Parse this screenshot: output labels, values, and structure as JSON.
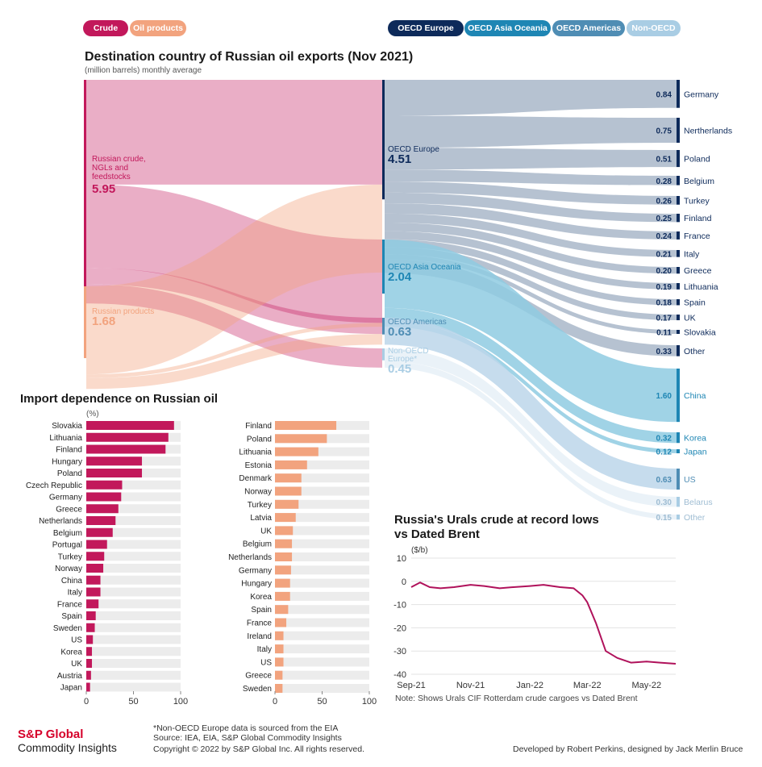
{
  "legend": {
    "crude": {
      "label": "Crude",
      "color": "#c2185b"
    },
    "products": {
      "label": "Oil products",
      "color": "#f2a37e"
    },
    "regions": [
      {
        "label": "OECD Europe",
        "color": "#0d2a5a"
      },
      {
        "label": "OECD Asia Oceania",
        "color": "#1e86b4"
      },
      {
        "label": "OECD Americas",
        "color": "#4f8db4"
      },
      {
        "label": "Non-OECD",
        "color": "#a9cde4"
      }
    ]
  },
  "sankey": {
    "title": "Destination country of Russian oil exports (Nov 2021)",
    "subtitle": "(million barrels) monthly average",
    "sources": [
      {
        "label": "Russian crude,\nNGLs and\nfeedstocks",
        "value": "5.95"
      },
      {
        "label": "Russian products",
        "value": "1.68"
      }
    ],
    "regions": [
      {
        "label": "OECD Europe",
        "value": "4.51"
      },
      {
        "label": "OECD Asia Oceania",
        "value": "2.04"
      },
      {
        "label": "OECD Americas",
        "value": "0.63"
      },
      {
        "label": "Non-OECD\nEurope*",
        "value": "0.45"
      }
    ],
    "destinations": [
      {
        "label": "Germany",
        "value": "0.84",
        "region": 0
      },
      {
        "label": "Nertherlands",
        "value": "0.75",
        "region": 0
      },
      {
        "label": "Poland",
        "value": "0.51",
        "region": 0
      },
      {
        "label": "Belgium",
        "value": "0.28",
        "region": 0
      },
      {
        "label": "Turkey",
        "value": "0.26",
        "region": 0
      },
      {
        "label": "Finland",
        "value": "0.25",
        "region": 0
      },
      {
        "label": "France",
        "value": "0.24",
        "region": 0
      },
      {
        "label": "Italy",
        "value": "0.21",
        "region": 0
      },
      {
        "label": "Greece",
        "value": "0.20",
        "region": 0
      },
      {
        "label": "Lithuania",
        "value": "0.19",
        "region": 0
      },
      {
        "label": "Spain",
        "value": "0.18",
        "region": 0
      },
      {
        "label": "UK",
        "value": "0.17",
        "region": 0
      },
      {
        "label": "Slovakia",
        "value": "0.11",
        "region": 0
      },
      {
        "label": "Other",
        "value": "0.33",
        "region": 0
      },
      {
        "label": "China",
        "value": "1.60",
        "region": 1
      },
      {
        "label": "Korea",
        "value": "0.32",
        "region": 1
      },
      {
        "label": "Japan",
        "value": "0.12",
        "region": 1
      },
      {
        "label": "US",
        "value": "0.63",
        "region": 2
      },
      {
        "label": "Belarus",
        "value": "0.30",
        "region": 3
      },
      {
        "label": "Other",
        "value": "0.15",
        "region": 3
      }
    ]
  },
  "import_dependence": {
    "title": "Import dependence on Russian oil",
    "unit": "(%)",
    "crude": {
      "categories": [
        "Slovakia",
        "Lithuania",
        "Finland",
        "Hungary",
        "Poland",
        "Czech Republic",
        "Germany",
        "Greece",
        "Netherlands",
        "Belgium",
        "Portugal",
        "Turkey",
        "Norway",
        "China",
        "Italy",
        "France",
        "Spain",
        "Sweden",
        "US",
        "Korea",
        "UK",
        "Austria",
        "Japan"
      ],
      "values": [
        93,
        87,
        84,
        59,
        59,
        38,
        37,
        34,
        31,
        28,
        22,
        19,
        18,
        15,
        15,
        13,
        10,
        9,
        7,
        6,
        6,
        5,
        4
      ],
      "xlim": [
        0,
        100
      ],
      "ticks": [
        "0",
        "50",
        "100"
      ]
    },
    "products": {
      "categories": [
        "Finland",
        "Poland",
        "Lithuania",
        "Estonia",
        "Denmark",
        "Norway",
        "Turkey",
        "Latvia",
        "UK",
        "Belgium",
        "Netherlands",
        "Germany",
        "Hungary",
        "Korea",
        "Spain",
        "France",
        "Ireland",
        "Italy",
        "US",
        "Greece",
        "Sweden"
      ],
      "values": [
        65,
        55,
        46,
        34,
        28,
        28,
        25,
        22,
        19,
        18,
        18,
        17,
        16,
        16,
        14,
        12,
        9,
        9,
        9,
        8,
        8
      ],
      "xlim": [
        0,
        100
      ],
      "ticks": [
        "0",
        "50",
        "100"
      ]
    }
  },
  "chart_data": {
    "type": "line",
    "title": "Russia's Urals crude at record lows\nvs Dated Brent",
    "ylabel": "($/b)",
    "ylim": [
      -40,
      10
    ],
    "yticks": [
      "10",
      "0",
      "-10",
      "-20",
      "-30",
      "-40"
    ],
    "xticks": [
      "Sep-21",
      "Nov-21",
      "Jan-22",
      "Mar-22",
      "May-22"
    ],
    "note": "Note: Shows Urals CIF Rotterdam crude cargoes vs  Dated Brent",
    "series": [
      {
        "x": [
          "2021-09-01",
          "2021-09-10",
          "2021-09-20",
          "2021-10-01",
          "2021-10-15",
          "2021-11-01",
          "2021-11-15",
          "2021-12-01",
          "2021-12-15",
          "2022-01-01",
          "2022-01-15",
          "2022-02-01",
          "2022-02-15",
          "2022-02-24",
          "2022-03-01",
          "2022-03-10",
          "2022-03-20",
          "2022-04-01",
          "2022-04-15",
          "2022-05-01",
          "2022-05-15",
          "2022-05-31"
        ],
        "y": [
          -2.5,
          -0.5,
          -2.5,
          -3.0,
          -2.5,
          -1.5,
          -2.0,
          -3.0,
          -2.5,
          -2.0,
          -1.5,
          -2.5,
          -3.0,
          -6.0,
          -9.0,
          -18.0,
          -30.0,
          -33.0,
          -35.0,
          -34.5,
          -35.0,
          -35.5
        ]
      }
    ]
  },
  "footer": {
    "brand_line1": "S&P Global",
    "brand_line2": "Commodity Insights",
    "note1": "*Non-OECD Europe data is sourced from the EIA",
    "note2": "Source: IEA, EIA, S&P Global Commodity Insights",
    "note3": "Copyright © 2022 by S&P Global Inc. All rights reserved.",
    "credits": "Developed by Robert Perkins,  designed by Jack Merlin Bruce"
  }
}
